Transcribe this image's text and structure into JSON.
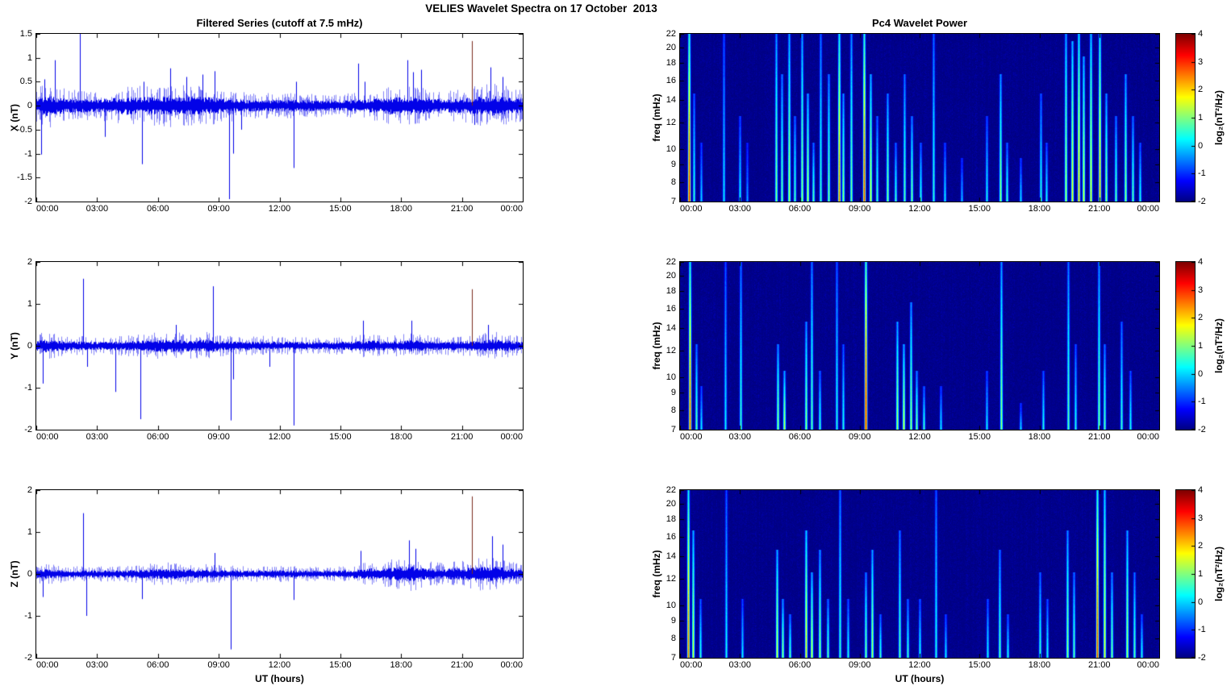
{
  "figure_title": "VELIES Wavelet Spectra on 17 October  2013",
  "colors": {
    "line": "#0202E8",
    "dark_spike": "#7A2A1E",
    "axis": "#000000",
    "background": "#FFFFFF",
    "spectrogram_background": "#000080"
  },
  "colorbar": {
    "label": "log₂(nT²/Hz)",
    "ticks": [
      4,
      3,
      2,
      1,
      0,
      -1,
      -2
    ],
    "clim": [
      -2,
      4
    ]
  },
  "chart_data": [
    {
      "id": "x-filtered-series",
      "type": "line",
      "title": "Filtered Series (cutoff at 7.5 mHz)",
      "ylabel": "X (nT)",
      "xlim": [
        0,
        24
      ],
      "ylim": [
        -2,
        1.5
      ],
      "yticks": [
        1.5,
        1,
        0.5,
        0,
        -0.5,
        -1,
        -1.5,
        -2
      ],
      "xticks": [
        "00:00",
        "03:00",
        "06:00",
        "09:00",
        "12:00",
        "15:00",
        "18:00",
        "21:00",
        "00:00"
      ],
      "noise_envelope": [
        [
          0,
          0.13
        ],
        [
          0.5,
          0.18
        ],
        [
          1,
          0.15
        ],
        [
          2,
          0.12
        ],
        [
          3,
          0.11
        ],
        [
          4,
          0.14
        ],
        [
          4.5,
          0.16
        ],
        [
          5.5,
          0.15
        ],
        [
          6.5,
          0.17
        ],
        [
          7.5,
          0.16
        ],
        [
          8.5,
          0.15
        ],
        [
          9.5,
          0.13
        ],
        [
          10,
          0.11
        ],
        [
          11,
          0.1
        ],
        [
          12,
          0.1
        ],
        [
          13,
          0.1
        ],
        [
          14,
          0.09
        ],
        [
          15,
          0.09
        ],
        [
          16,
          0.11
        ],
        [
          17,
          0.13
        ],
        [
          17.5,
          0.16
        ],
        [
          18,
          0.14
        ],
        [
          18.5,
          0.17
        ],
        [
          19,
          0.14
        ],
        [
          20,
          0.11
        ],
        [
          21,
          0.13
        ],
        [
          21.5,
          0.15
        ],
        [
          22,
          0.16
        ],
        [
          22.5,
          0.18
        ],
        [
          23,
          0.16
        ],
        [
          24,
          0.12
        ]
      ],
      "spikes": [
        [
          0.25,
          -1.02
        ],
        [
          0.4,
          0.55
        ],
        [
          0.9,
          0.95
        ],
        [
          2.15,
          1.5
        ],
        [
          3.4,
          -0.65
        ],
        [
          5.2,
          -1.22
        ],
        [
          5.3,
          0.5
        ],
        [
          6.6,
          0.78
        ],
        [
          7.4,
          0.6
        ],
        [
          8.2,
          0.65
        ],
        [
          8.8,
          0.72
        ],
        [
          9.5,
          -1.95
        ],
        [
          9.7,
          -1.0
        ],
        [
          10.1,
          -0.5
        ],
        [
          12.7,
          -1.3
        ],
        [
          12.8,
          0.5
        ],
        [
          15.9,
          0.88
        ],
        [
          16.2,
          0.5
        ],
        [
          18.3,
          0.95
        ],
        [
          18.6,
          0.7
        ],
        [
          19.0,
          0.75
        ],
        [
          21.5,
          1.35,
          "dark"
        ],
        [
          21.6,
          -0.4
        ],
        [
          22.4,
          0.8
        ],
        [
          23.0,
          0.6
        ]
      ]
    },
    {
      "id": "y-filtered-series",
      "type": "line",
      "ylabel": "Y (nT)",
      "xlim": [
        0,
        24
      ],
      "ylim": [
        -2,
        2
      ],
      "yticks": [
        2,
        1,
        0,
        -1,
        -2
      ],
      "xticks": [
        "00:00",
        "03:00",
        "06:00",
        "09:00",
        "12:00",
        "15:00",
        "18:00",
        "21:00",
        "00:00"
      ],
      "noise_envelope": [
        [
          0,
          0.1
        ],
        [
          0.5,
          0.13
        ],
        [
          1,
          0.1
        ],
        [
          2,
          0.09
        ],
        [
          3,
          0.08
        ],
        [
          4,
          0.09
        ],
        [
          5,
          0.1
        ],
        [
          6,
          0.12
        ],
        [
          6.5,
          0.13
        ],
        [
          7,
          0.12
        ],
        [
          8,
          0.11
        ],
        [
          8.5,
          0.13
        ],
        [
          9,
          0.1
        ],
        [
          10,
          0.08
        ],
        [
          11,
          0.09
        ],
        [
          12,
          0.08
        ],
        [
          13,
          0.08
        ],
        [
          14,
          0.07
        ],
        [
          15,
          0.08
        ],
        [
          16,
          0.1
        ],
        [
          16.5,
          0.11
        ],
        [
          17,
          0.09
        ],
        [
          18,
          0.1
        ],
        [
          18.5,
          0.12
        ],
        [
          19,
          0.1
        ],
        [
          20,
          0.08
        ],
        [
          21,
          0.09
        ],
        [
          22,
          0.11
        ],
        [
          22.5,
          0.13
        ],
        [
          23,
          0.11
        ],
        [
          24,
          0.09
        ]
      ],
      "spikes": [
        [
          0.3,
          -0.9
        ],
        [
          2.3,
          1.6
        ],
        [
          2.5,
          -0.5
        ],
        [
          3.9,
          -1.1
        ],
        [
          5.15,
          -1.75
        ],
        [
          6.9,
          0.5
        ],
        [
          8.7,
          1.42
        ],
        [
          9.6,
          -1.78
        ],
        [
          9.7,
          -0.8
        ],
        [
          11.5,
          -0.5
        ],
        [
          12.7,
          -1.9
        ],
        [
          16.1,
          0.6
        ],
        [
          18.5,
          0.6
        ],
        [
          21.5,
          1.35,
          "dark"
        ],
        [
          22.3,
          0.5
        ]
      ]
    },
    {
      "id": "z-filtered-series",
      "type": "line",
      "ylabel": "Z (nT)",
      "xlabel": "UT (hours)",
      "xlim": [
        0,
        24
      ],
      "ylim": [
        -2,
        2
      ],
      "yticks": [
        2,
        1,
        0,
        -1,
        -2
      ],
      "xticks": [
        "00:00",
        "03:00",
        "06:00",
        "09:00",
        "12:00",
        "15:00",
        "18:00",
        "21:00",
        "00:00"
      ],
      "noise_envelope": [
        [
          0,
          0.08
        ],
        [
          0.5,
          0.1
        ],
        [
          1,
          0.08
        ],
        [
          2,
          0.07
        ],
        [
          3,
          0.07
        ],
        [
          4,
          0.07
        ],
        [
          5,
          0.08
        ],
        [
          6,
          0.1
        ],
        [
          6.5,
          0.11
        ],
        [
          7,
          0.1
        ],
        [
          8,
          0.09
        ],
        [
          9,
          0.08
        ],
        [
          10,
          0.07
        ],
        [
          11,
          0.07
        ],
        [
          12,
          0.07
        ],
        [
          13,
          0.07
        ],
        [
          14,
          0.06
        ],
        [
          15,
          0.07
        ],
        [
          16,
          0.1
        ],
        [
          16.5,
          0.12
        ],
        [
          17,
          0.11
        ],
        [
          17.5,
          0.13
        ],
        [
          18,
          0.14
        ],
        [
          18.5,
          0.16
        ],
        [
          19,
          0.12
        ],
        [
          20,
          0.1
        ],
        [
          21,
          0.12
        ],
        [
          21.5,
          0.13
        ],
        [
          22,
          0.15
        ],
        [
          22.5,
          0.16
        ],
        [
          23,
          0.13
        ],
        [
          24,
          0.09
        ]
      ],
      "spikes": [
        [
          0.3,
          -0.55
        ],
        [
          2.3,
          1.45
        ],
        [
          2.45,
          -1.0
        ],
        [
          5.2,
          -0.6
        ],
        [
          8.8,
          0.5
        ],
        [
          9.6,
          -1.8
        ],
        [
          12.7,
          -0.62
        ],
        [
          16.0,
          0.55
        ],
        [
          18.4,
          0.8
        ],
        [
          18.7,
          0.6
        ],
        [
          21.5,
          1.85,
          "dark"
        ],
        [
          22.5,
          0.9
        ],
        [
          23.0,
          0.7
        ]
      ]
    },
    {
      "id": "x-wavelet-spectrogram",
      "type": "heatmap",
      "title": "Pc4 Wavelet Power",
      "ylabel": "freq (mHz)",
      "xlim": [
        0,
        24
      ],
      "ylim": [
        7,
        22
      ],
      "yscale": "log",
      "yticks": [
        22,
        20,
        18,
        16,
        14,
        12,
        10,
        9,
        8,
        7
      ],
      "xticks": [
        "00:00",
        "03:00",
        "06:00",
        "09:00",
        "12:00",
        "15:00",
        "18:00",
        "21:00",
        "00:00"
      ],
      "clim": [
        -2,
        4
      ],
      "streaks": [
        [
          0.45,
          22,
          3.2
        ],
        [
          0.7,
          14,
          0.6
        ],
        [
          1.05,
          10,
          0.1
        ],
        [
          2.2,
          22,
          0.25
        ],
        [
          3.0,
          12,
          0.35
        ],
        [
          3.35,
          10,
          -0.2
        ],
        [
          4.8,
          22,
          1.2
        ],
        [
          5.1,
          16,
          1.0
        ],
        [
          5.45,
          22,
          1.5
        ],
        [
          5.75,
          12,
          0.8
        ],
        [
          6.1,
          22,
          1.3
        ],
        [
          6.4,
          14,
          1.6
        ],
        [
          6.65,
          10,
          0.9
        ],
        [
          7.05,
          22,
          0.7
        ],
        [
          7.45,
          16,
          1.1
        ],
        [
          7.95,
          22,
          2.6
        ],
        [
          8.15,
          14,
          1.3
        ],
        [
          8.55,
          22,
          1.1
        ],
        [
          9.2,
          22,
          3.0
        ],
        [
          9.55,
          16,
          1.7
        ],
        [
          9.85,
          12,
          0.7
        ],
        [
          10.4,
          14,
          1.2
        ],
        [
          10.8,
          10,
          0.7
        ],
        [
          11.25,
          16,
          0.9
        ],
        [
          11.6,
          12,
          1.1
        ],
        [
          12.05,
          10,
          0.6
        ],
        [
          12.7,
          22,
          0.6
        ],
        [
          13.25,
          10,
          0.3
        ],
        [
          14.1,
          9,
          0.0
        ],
        [
          15.35,
          12,
          0.4
        ],
        [
          16.05,
          16,
          1.3
        ],
        [
          16.35,
          10,
          0.7
        ],
        [
          17.05,
          9,
          0.2
        ],
        [
          18.05,
          14,
          0.6
        ],
        [
          18.35,
          10,
          0.4
        ],
        [
          19.3,
          22,
          1.5
        ],
        [
          19.65,
          20,
          1.9
        ],
        [
          19.95,
          22,
          2.3
        ],
        [
          20.2,
          18,
          1.7
        ],
        [
          20.55,
          22,
          1.9
        ],
        [
          21.0,
          22,
          2.4
        ],
        [
          21.35,
          14,
          1.3
        ],
        [
          21.8,
          12,
          0.9
        ],
        [
          22.3,
          16,
          1.3
        ],
        [
          22.65,
          12,
          0.9
        ],
        [
          23.05,
          10,
          0.5
        ]
      ]
    },
    {
      "id": "y-wavelet-spectrogram",
      "type": "heatmap",
      "ylabel": "freq (mHz)",
      "xlim": [
        0,
        24
      ],
      "ylim": [
        7,
        22
      ],
      "yscale": "log",
      "yticks": [
        22,
        20,
        18,
        16,
        14,
        12,
        10,
        9,
        8,
        7
      ],
      "xticks": [
        "00:00",
        "03:00",
        "06:00",
        "09:00",
        "12:00",
        "15:00",
        "18:00",
        "21:00",
        "00:00"
      ],
      "clim": [
        -2,
        4
      ],
      "streaks": [
        [
          0.5,
          22,
          2.9
        ],
        [
          0.8,
          12,
          0.9
        ],
        [
          1.05,
          9,
          0.3
        ],
        [
          2.25,
          22,
          0.3
        ],
        [
          3.05,
          22,
          0.7
        ],
        [
          4.9,
          12,
          1.3
        ],
        [
          5.2,
          10,
          1.6
        ],
        [
          6.3,
          14,
          1.3
        ],
        [
          6.6,
          22,
          0.9
        ],
        [
          7.0,
          10,
          0.7
        ],
        [
          7.85,
          22,
          0.5
        ],
        [
          8.15,
          12,
          0.5
        ],
        [
          9.3,
          22,
          3.5
        ],
        [
          10.85,
          14,
          1.5
        ],
        [
          11.2,
          12,
          1.7
        ],
        [
          11.55,
          16,
          1.3
        ],
        [
          11.85,
          10,
          1.1
        ],
        [
          12.2,
          9,
          0.7
        ],
        [
          13.05,
          9,
          0.3
        ],
        [
          15.35,
          10,
          0.3
        ],
        [
          16.1,
          22,
          1.3
        ],
        [
          17.05,
          8,
          0.2
        ],
        [
          18.2,
          10,
          0.5
        ],
        [
          19.45,
          22,
          0.9
        ],
        [
          19.8,
          12,
          0.5
        ],
        [
          20.95,
          22,
          1.1
        ],
        [
          21.25,
          12,
          0.9
        ],
        [
          22.1,
          14,
          0.7
        ],
        [
          22.55,
          10,
          0.5
        ]
      ]
    },
    {
      "id": "z-wavelet-spectrogram",
      "type": "heatmap",
      "ylabel": "freq (mHz)",
      "xlabel": "UT (hours)",
      "xlim": [
        0,
        24
      ],
      "ylim": [
        7,
        22
      ],
      "yscale": "log",
      "yticks": [
        22,
        20,
        18,
        16,
        14,
        12,
        10,
        9,
        8,
        7
      ],
      "xticks": [
        "00:00",
        "03:00",
        "06:00",
        "09:00",
        "12:00",
        "15:00",
        "18:00",
        "21:00",
        "00:00"
      ],
      "clim": [
        -2,
        4
      ],
      "streaks": [
        [
          0.4,
          22,
          2.7
        ],
        [
          0.65,
          16,
          1.7
        ],
        [
          1.0,
          10,
          0.6
        ],
        [
          2.3,
          22,
          0.4
        ],
        [
          3.1,
          10,
          0.3
        ],
        [
          4.85,
          14,
          1.7
        ],
        [
          5.15,
          10,
          1.3
        ],
        [
          5.5,
          9,
          0.9
        ],
        [
          6.3,
          16,
          2.1
        ],
        [
          6.6,
          12,
          1.7
        ],
        [
          7.0,
          14,
          1.3
        ],
        [
          7.4,
          10,
          0.9
        ],
        [
          8.0,
          22,
          0.7
        ],
        [
          8.4,
          10,
          0.5
        ],
        [
          9.3,
          12,
          1.1
        ],
        [
          9.6,
          14,
          1.5
        ],
        [
          10.0,
          9,
          0.7
        ],
        [
          11.0,
          16,
          0.9
        ],
        [
          11.4,
          10,
          0.7
        ],
        [
          12.0,
          10,
          0.5
        ],
        [
          12.8,
          22,
          0.5
        ],
        [
          13.3,
          9,
          0.3
        ],
        [
          15.4,
          10,
          0.4
        ],
        [
          16.0,
          14,
          0.9
        ],
        [
          16.4,
          9,
          0.5
        ],
        [
          18.0,
          12,
          0.7
        ],
        [
          18.4,
          10,
          0.5
        ],
        [
          19.4,
          16,
          1.3
        ],
        [
          19.7,
          12,
          0.9
        ],
        [
          20.9,
          22,
          3.0
        ],
        [
          21.25,
          22,
          1.9
        ],
        [
          21.6,
          12,
          1.1
        ],
        [
          22.4,
          16,
          1.5
        ],
        [
          22.75,
          12,
          0.9
        ],
        [
          23.1,
          9,
          0.5
        ]
      ]
    }
  ]
}
